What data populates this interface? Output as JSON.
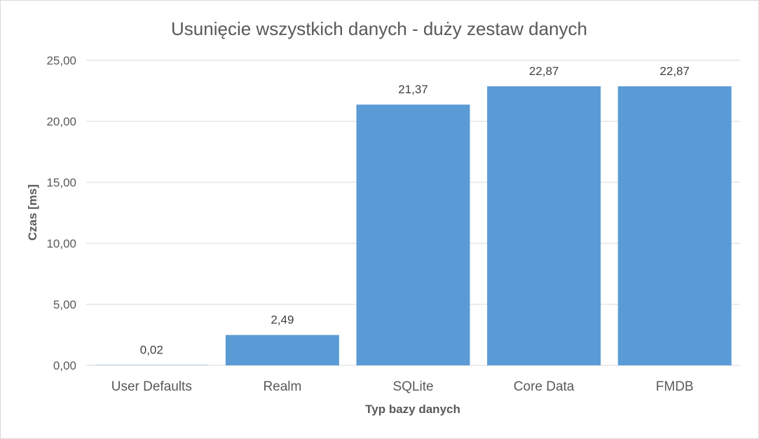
{
  "chart_data": {
    "type": "bar",
    "title": "Usunięcie wszystkich danych - duży zestaw danych",
    "xlabel": "Typ bazy danych",
    "ylabel": "Czas [ms]",
    "categories": [
      "User Defaults",
      "Realm",
      "SQLite",
      "Core Data",
      "FMDB"
    ],
    "values": [
      0.02,
      2.49,
      21.37,
      22.87,
      22.87
    ],
    "data_labels": [
      "0,02",
      "2,49",
      "21,37",
      "22,87",
      "22,87"
    ],
    "ylim": [
      0,
      25
    ],
    "yticks": [
      0,
      5,
      10,
      15,
      20,
      25
    ],
    "ytick_labels": [
      "0,00",
      "5,00",
      "10,00",
      "15,00",
      "20,00",
      "25,00"
    ],
    "grid": true,
    "bar_color": "#5b9bd5",
    "grid_color": "#d9d9d9"
  }
}
